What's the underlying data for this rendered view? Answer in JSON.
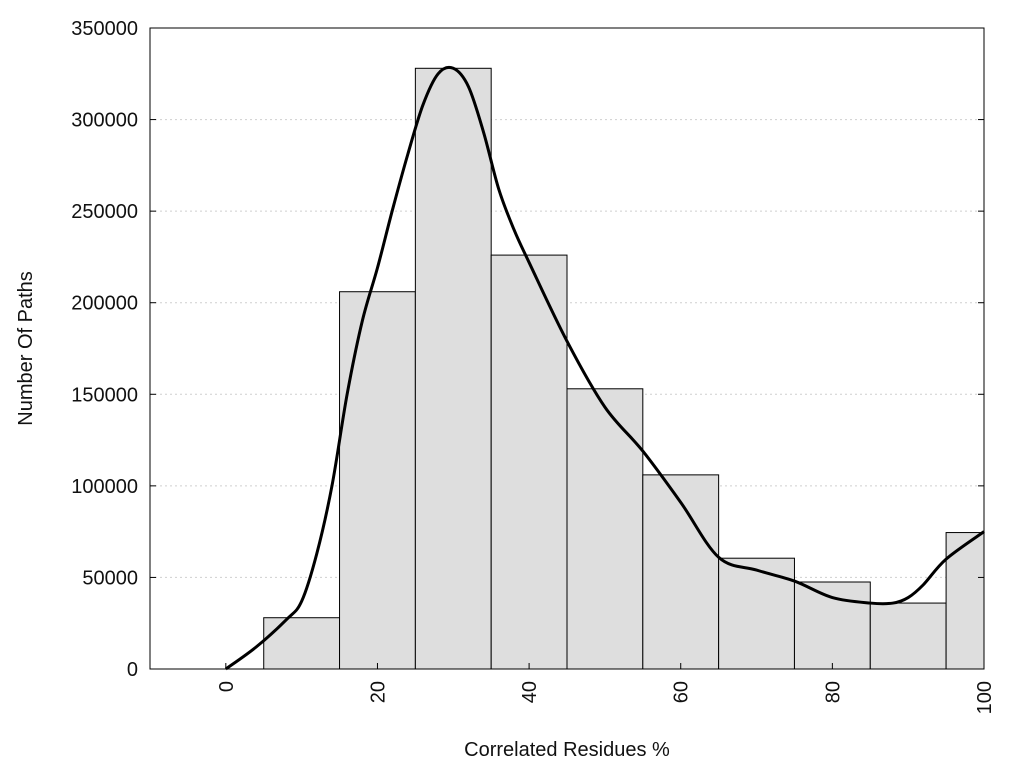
{
  "chart_data": {
    "type": "bar",
    "xlabel": "Correlated Residues %",
    "ylabel": "Number Of Paths",
    "xlim": [
      -10,
      100
    ],
    "ylim": [
      0,
      350000
    ],
    "x_ticks": [
      0,
      20,
      40,
      60,
      80,
      100
    ],
    "y_ticks": [
      0,
      50000,
      100000,
      150000,
      200000,
      250000,
      300000,
      350000
    ],
    "grid": "horizontal dotted",
    "bars": [
      {
        "x0": 0,
        "x1": 5,
        "value": 0
      },
      {
        "x0": 5,
        "x1": 15,
        "value": 28000
      },
      {
        "x0": 15,
        "x1": 25,
        "value": 206000
      },
      {
        "x0": 25,
        "x1": 35,
        "value": 328000
      },
      {
        "x0": 35,
        "x1": 45,
        "value": 226000
      },
      {
        "x0": 45,
        "x1": 55,
        "value": 153000
      },
      {
        "x0": 55,
        "x1": 65,
        "value": 106000
      },
      {
        "x0": 65,
        "x1": 75,
        "value": 60500
      },
      {
        "x0": 75,
        "x1": 85,
        "value": 47500
      },
      {
        "x0": 85,
        "x1": 95,
        "value": 36000
      },
      {
        "x0": 95,
        "x1": 100,
        "value": 74500
      }
    ],
    "curve": {
      "x": [
        0,
        4,
        8,
        10,
        12,
        14,
        16,
        18,
        20,
        22,
        24,
        26,
        28,
        30,
        32,
        34,
        36,
        38,
        40,
        45,
        50,
        55,
        60,
        65,
        70,
        75,
        80,
        85,
        88,
        90,
        92,
        95,
        100
      ],
      "y": [
        0,
        12000,
        27000,
        37000,
        63000,
        100000,
        150000,
        190000,
        219000,
        251000,
        281000,
        308000,
        325000,
        328000,
        318000,
        293000,
        262000,
        240000,
        222000,
        179000,
        143000,
        119000,
        91000,
        61000,
        54000,
        48000,
        39000,
        36000,
        36000,
        39000,
        46000,
        60000,
        75000
      ]
    },
    "bar_fill": "#dedede",
    "bar_stroke": "#000000",
    "curve_color": "#000000"
  }
}
